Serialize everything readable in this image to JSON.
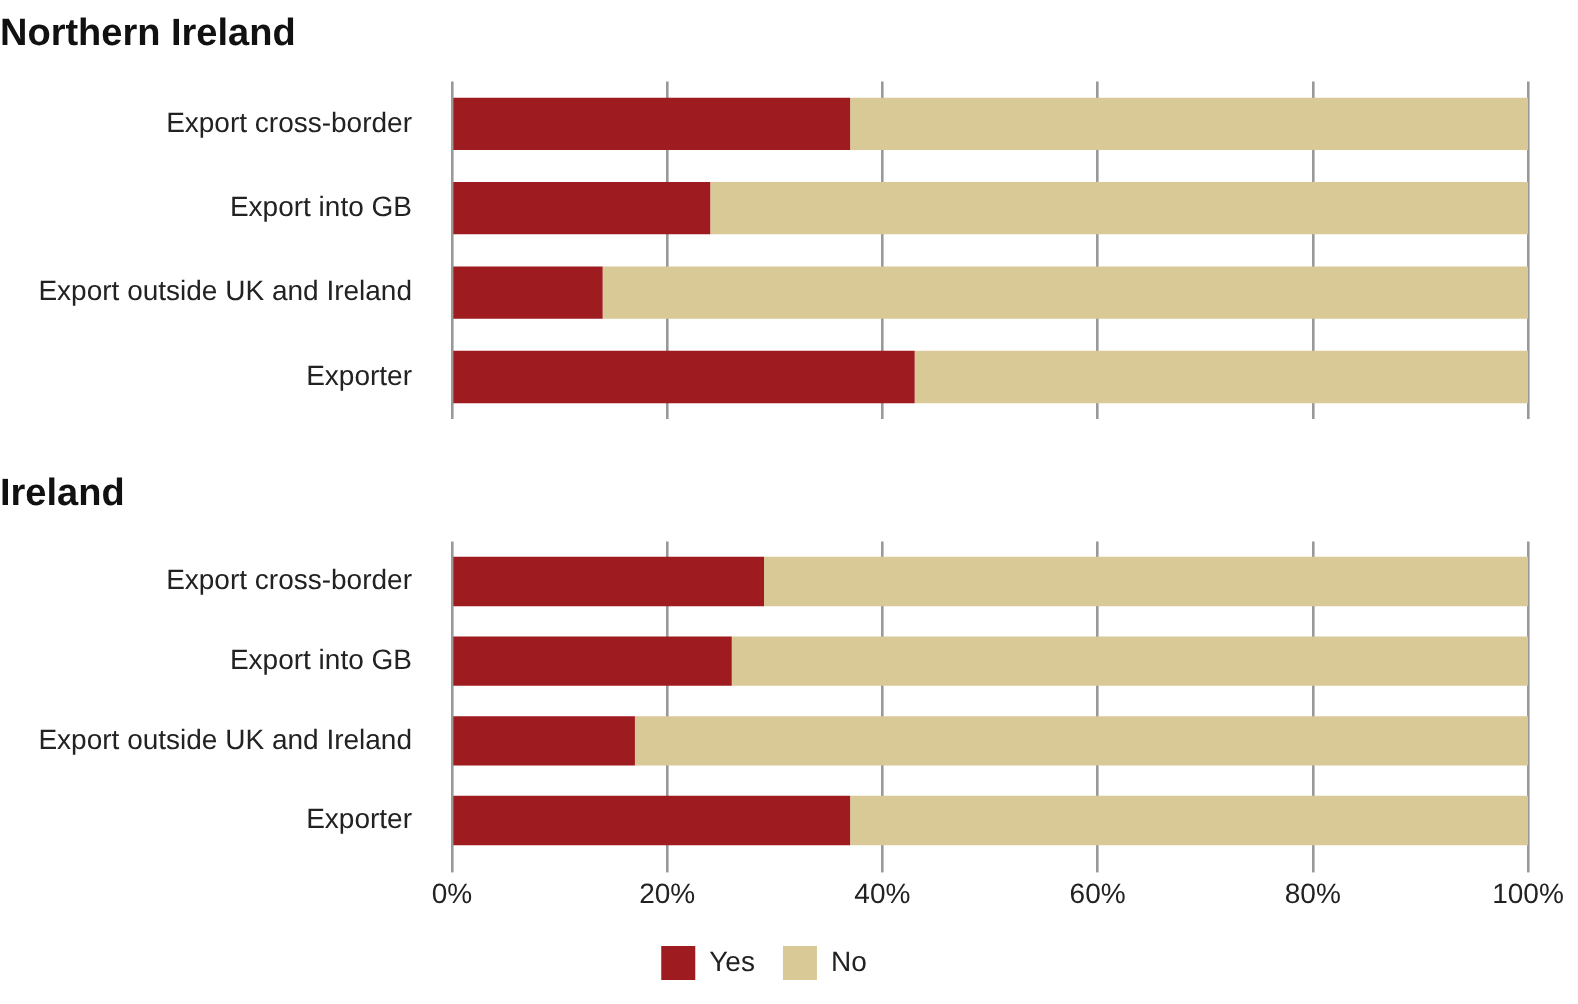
{
  "chart_data": [
    {
      "type": "bar",
      "orientation": "horizontal",
      "stacked": true,
      "title": "Northern Ireland",
      "categories": [
        "Export cross-border",
        "Export into GB",
        "Export outside UK and Ireland",
        "Exporter"
      ],
      "series": [
        {
          "color": "#9e1b20",
          "values": [
            37,
            24,
            14,
            43
          ]
        },
        {
          "color": "#d9c996",
          "values": [
            63,
            76,
            86,
            57
          ]
        }
      ],
      "xlim": [
        0,
        100
      ],
      "xticks": [
        0,
        20,
        40,
        60,
        80,
        100
      ],
      "grid": "x",
      "tick_labels": "y",
      "legend": false
    },
    {
      "type": "bar",
      "orientation": "horizontal",
      "stacked": true,
      "title": "Ireland",
      "categories": [
        "Export cross-border",
        "Export into GB",
        "Export outside UK and Ireland",
        "Exporter"
      ],
      "series": [
        {
          "name": "Yes",
          "color": "#9e1b20",
          "values": [
            29,
            26,
            17,
            37
          ]
        },
        {
          "name": "No",
          "color": "#d9c996",
          "values": [
            71,
            74,
            83,
            63
          ]
        }
      ],
      "xlim": [
        0,
        100
      ],
      "xticks": [
        {
          "value": 0,
          "label": "0%"
        },
        {
          "value": 20,
          "label": "20%"
        },
        {
          "value": 40,
          "label": "40%"
        },
        {
          "value": 60,
          "label": "60%"
        },
        {
          "value": 80,
          "label": "80%"
        },
        {
          "value": 100,
          "label": "100%"
        }
      ],
      "grid": "x",
      "legend": "bottom"
    }
  ]
}
